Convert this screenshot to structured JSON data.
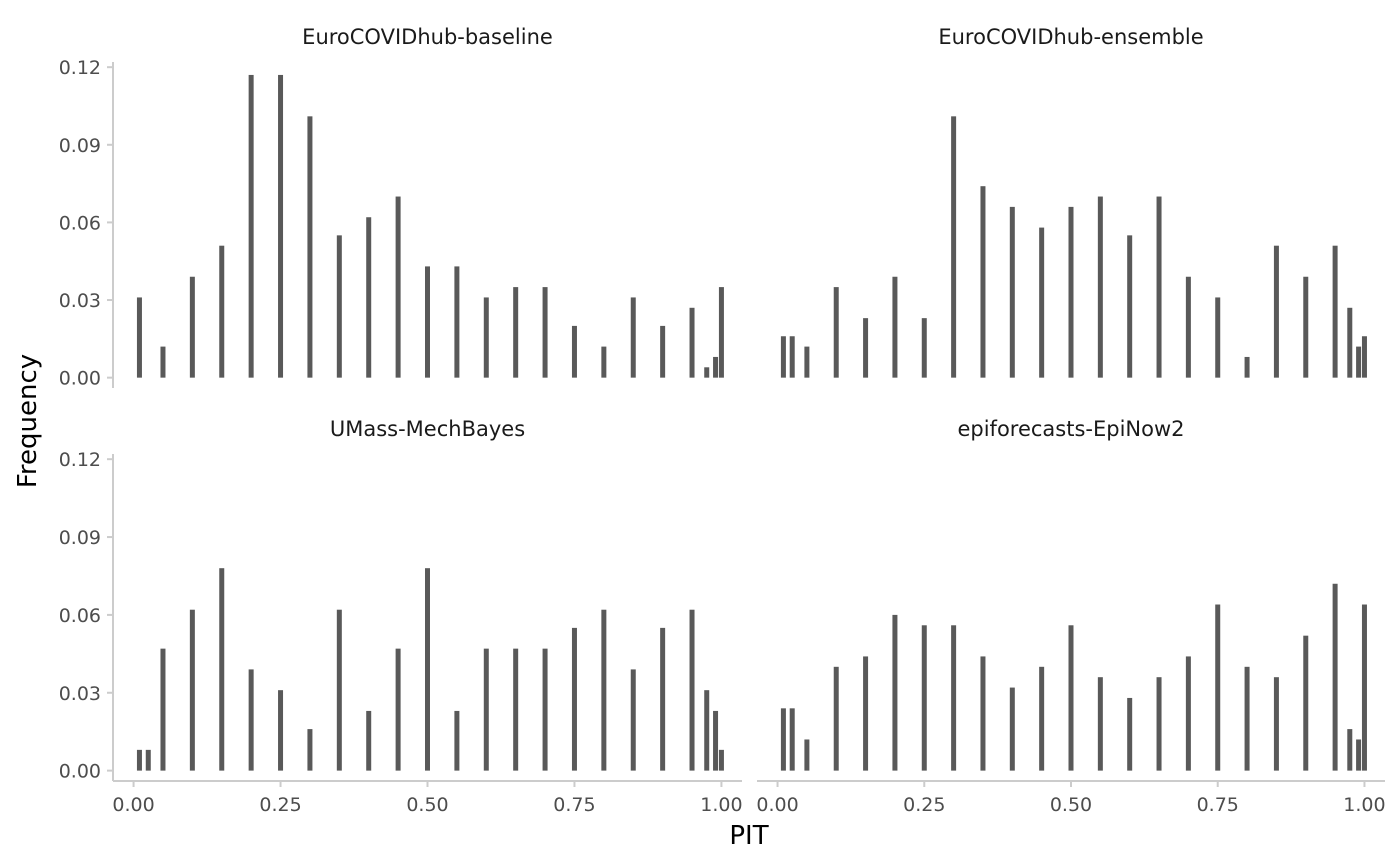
{
  "chart_data": {
    "type": "bar",
    "xlabel": "PIT",
    "ylabel": "Frequency",
    "xlim": [
      -0.035,
      1.035
    ],
    "ylim": [
      -0.004,
      0.122
    ],
    "x_ticks": [
      0.0,
      0.25,
      0.5,
      0.75,
      1.0
    ],
    "x_tick_labels": [
      "0.00",
      "0.25",
      "0.50",
      "0.75",
      "1.00"
    ],
    "y_ticks": [
      0.0,
      0.03,
      0.06,
      0.09,
      0.12
    ],
    "y_tick_labels": [
      "0.00",
      "0.03",
      "0.06",
      "0.09",
      "0.12"
    ],
    "bar_color": "#595959",
    "axis_color": "#cccccc",
    "facets": [
      {
        "title": "EuroCOVIDhub-baseline",
        "x": [
          0.01,
          0.05,
          0.1,
          0.15,
          0.2,
          0.25,
          0.3,
          0.35,
          0.4,
          0.45,
          0.5,
          0.55,
          0.6,
          0.65,
          0.7,
          0.75,
          0.8,
          0.85,
          0.9,
          0.95,
          0.975,
          0.99,
          1.0
        ],
        "values": [
          0.031,
          0.012,
          0.039,
          0.051,
          0.117,
          0.117,
          0.101,
          0.055,
          0.062,
          0.07,
          0.043,
          0.043,
          0.031,
          0.035,
          0.035,
          0.02,
          0.012,
          0.031,
          0.02,
          0.027,
          0.004,
          0.008,
          0.035
        ]
      },
      {
        "title": "EuroCOVIDhub-ensemble",
        "x": [
          0.01,
          0.025,
          0.05,
          0.1,
          0.15,
          0.2,
          0.25,
          0.3,
          0.35,
          0.4,
          0.45,
          0.5,
          0.55,
          0.6,
          0.65,
          0.7,
          0.75,
          0.8,
          0.85,
          0.9,
          0.95,
          0.975,
          0.99,
          1.0
        ],
        "values": [
          0.016,
          0.016,
          0.012,
          0.035,
          0.023,
          0.039,
          0.023,
          0.101,
          0.074,
          0.066,
          0.058,
          0.066,
          0.07,
          0.055,
          0.07,
          0.039,
          0.031,
          0.008,
          0.051,
          0.039,
          0.051,
          0.027,
          0.012,
          0.016
        ]
      },
      {
        "title": "UMass-MechBayes",
        "x": [
          0.01,
          0.025,
          0.05,
          0.1,
          0.15,
          0.2,
          0.25,
          0.3,
          0.35,
          0.4,
          0.45,
          0.5,
          0.55,
          0.6,
          0.65,
          0.7,
          0.75,
          0.8,
          0.85,
          0.9,
          0.95,
          0.975,
          0.99,
          1.0
        ],
        "values": [
          0.008,
          0.008,
          0.047,
          0.062,
          0.078,
          0.039,
          0.031,
          0.016,
          0.062,
          0.023,
          0.047,
          0.078,
          0.023,
          0.047,
          0.047,
          0.047,
          0.055,
          0.062,
          0.039,
          0.055,
          0.062,
          0.031,
          0.023,
          0.008
        ]
      },
      {
        "title": "epiforecasts-EpiNow2",
        "x": [
          0.01,
          0.025,
          0.05,
          0.1,
          0.15,
          0.2,
          0.25,
          0.3,
          0.35,
          0.4,
          0.45,
          0.5,
          0.55,
          0.6,
          0.65,
          0.7,
          0.75,
          0.8,
          0.85,
          0.9,
          0.95,
          0.975,
          0.99,
          1.0
        ],
        "values": [
          0.024,
          0.024,
          0.012,
          0.04,
          0.044,
          0.06,
          0.056,
          0.056,
          0.044,
          0.032,
          0.04,
          0.056,
          0.036,
          0.028,
          0.036,
          0.044,
          0.064,
          0.04,
          0.036,
          0.052,
          0.072,
          0.016,
          0.012,
          0.064
        ]
      }
    ]
  }
}
